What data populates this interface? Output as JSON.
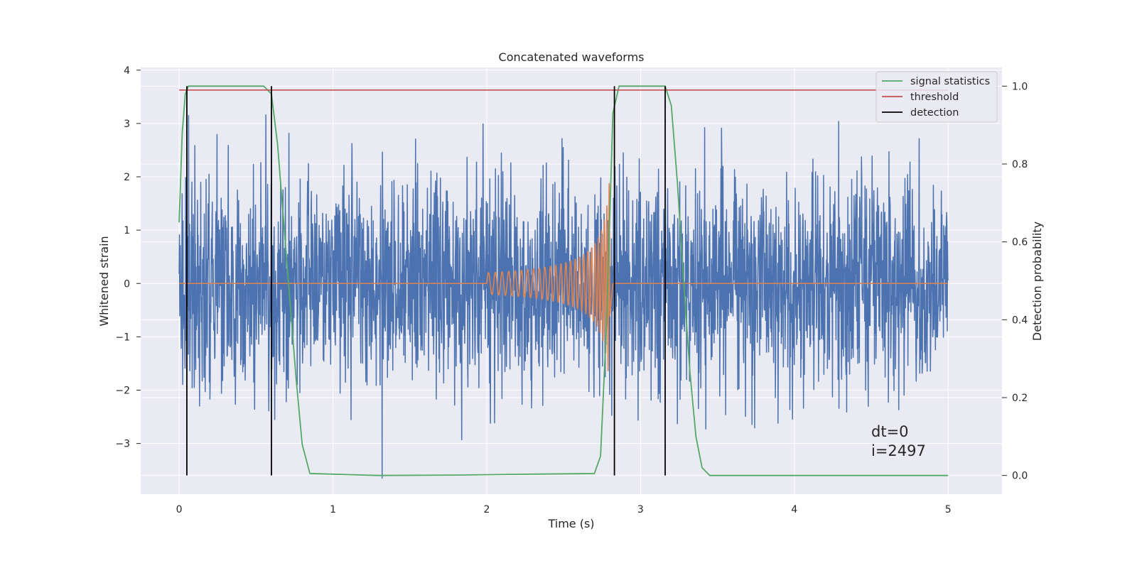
{
  "chart_data": {
    "type": "line",
    "title": "Concatenated waveforms",
    "xlabel": "Time (s)",
    "ylabel": "Whitened strain",
    "y2label": "Detection probability",
    "xlim": [
      -0.25,
      5.35
    ],
    "ylim": [
      -3.95,
      4.05
    ],
    "y2lim": [
      -0.048,
      1.048
    ],
    "x_ticks": [
      0,
      1,
      2,
      3,
      4,
      5
    ],
    "y_ticks": [
      -3,
      -2,
      -1,
      0,
      1,
      2,
      3,
      4
    ],
    "y2_ticks": [
      0.0,
      0.2,
      0.4,
      0.6,
      0.8,
      1.0
    ],
    "x_tick_labels": [
      "0",
      "1",
      "2",
      "3",
      "4",
      "5"
    ],
    "y_tick_labels": [
      "−3",
      "−2",
      "−1",
      "0",
      "1",
      "2",
      "3",
      "4"
    ],
    "y2_tick_labels": [
      "0.0",
      "0.2",
      "0.4",
      "0.6",
      "0.8",
      "1.0"
    ],
    "grid": true,
    "legend_position": "top-right",
    "colors": {
      "background": "#eaeaf2",
      "grid": "#ffffff",
      "strain": "#4c72b0",
      "injection": "#dd8452",
      "statistics": "#55a868",
      "threshold": "#c44e52",
      "detection": "#000000"
    },
    "series": [
      {
        "name": "",
        "kind": "whitened-strain",
        "axis": "left",
        "x_range": [
          0,
          5
        ],
        "typical_amplitude": 1.0,
        "peak_amplitude": 3.7,
        "min_value": -3.65
      },
      {
        "name": "",
        "kind": "injected-chirp",
        "axis": "left",
        "start_time": 2.0,
        "merger_time": 2.8,
        "start_amplitude": 0.2,
        "peak_amplitude": 2.2
      },
      {
        "name": "signal statistics",
        "axis": "right",
        "x": [
          0.0,
          0.02,
          0.04,
          0.06,
          0.1,
          0.55,
          0.6,
          0.64,
          0.68,
          0.72,
          0.76,
          0.8,
          0.85,
          1.3,
          1.8,
          2.2,
          2.7,
          2.74,
          2.78,
          2.82,
          2.86,
          2.9,
          3.16,
          3.2,
          3.24,
          3.28,
          3.32,
          3.36,
          3.4,
          3.45,
          5.0
        ],
        "values": [
          0.65,
          0.88,
          0.98,
          1.0,
          1.0,
          1.0,
          0.98,
          0.85,
          0.65,
          0.45,
          0.25,
          0.08,
          0.005,
          0.0,
          0.001,
          0.003,
          0.005,
          0.05,
          0.4,
          0.93,
          1.0,
          1.0,
          1.0,
          0.95,
          0.75,
          0.5,
          0.27,
          0.1,
          0.02,
          0.0,
          0.0
        ]
      },
      {
        "name": "threshold",
        "axis": "right",
        "x": [
          0,
          5
        ],
        "values": [
          0.99,
          0.99
        ]
      },
      {
        "name": "detection",
        "axis": "right",
        "times": [
          0.05,
          0.6,
          2.83,
          3.16
        ],
        "range": [
          0,
          1
        ]
      }
    ],
    "annotations": [
      "dt=0",
      "i=2497"
    ]
  }
}
